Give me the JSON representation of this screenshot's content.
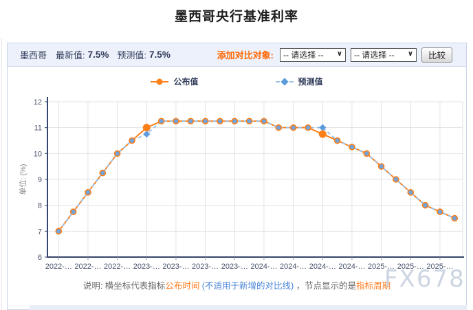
{
  "page_title": "墨西哥央行基准利率",
  "header": {
    "country": "墨西哥",
    "latest_label": "最新值:",
    "latest_value": "7.5%",
    "forecast_label": "预测值:",
    "forecast_value": "7.5%",
    "compare_label": "添加对比对象:",
    "select_placeholder": "-- 请选择 --",
    "compare_button": "比较"
  },
  "legend": {
    "published": "公布值",
    "forecast": "预测值"
  },
  "colors": {
    "series_orange": "#ff7f17",
    "marker_blue_fill": "#73a2d8",
    "diamond_blue": "#5d9cdb",
    "dash_blue": "#9cc2e8",
    "axis_navy": "#35456b",
    "grid_gray": "#e2e2e6",
    "tick_label": "#475069",
    "accent_orange": "#ff6600",
    "header_navy": "#2e3a59"
  },
  "chart_data": {
    "type": "line",
    "title": "墨西哥央行基准利率",
    "xlabel": "",
    "ylabel": "单位: (%)",
    "ylim": [
      6,
      12
    ],
    "yticks": [
      6,
      7,
      8,
      9,
      10,
      11,
      12
    ],
    "grid": true,
    "legend_position": "top",
    "x_tick_labels": [
      "2022-…",
      "2022-…",
      "2022-…",
      "2023-…",
      "2023-…",
      "2023-…",
      "2023-…",
      "2024-…",
      "2024-…",
      "2024-…",
      "2024-…",
      "2025-…",
      "2025-…",
      "2025-…"
    ],
    "series": [
      {
        "name": "公布值",
        "style": "solid-orange-circle",
        "values": [
          7,
          7.75,
          8.5,
          9.25,
          10,
          10.5,
          11,
          11.25,
          11.25,
          11.25,
          11.25,
          11.25,
          11.25,
          11.25,
          11.25,
          11,
          11,
          11,
          10.75,
          10.5,
          10.25,
          10,
          9.5,
          9,
          8.5,
          8,
          7.75,
          7.5
        ]
      },
      {
        "name": "预测值",
        "style": "dashed-blue-diamond",
        "values": [
          7,
          7.75,
          8.5,
          9.25,
          10,
          10.5,
          10.75,
          11.25,
          11.25,
          11.25,
          11.25,
          11.25,
          11.25,
          11.25,
          11.25,
          11,
          11,
          11,
          11,
          10.5,
          10.25,
          10,
          9.5,
          9,
          8.5,
          8,
          7.75,
          7.5
        ]
      }
    ]
  },
  "footnote": {
    "p1": "说明: 横坐标代表指标",
    "p2": "公布时间",
    "p3": " (不适用于新增的对比线) ",
    "p4": "，节点显示的是",
    "p5": "指标周期"
  },
  "watermark": "FX678"
}
